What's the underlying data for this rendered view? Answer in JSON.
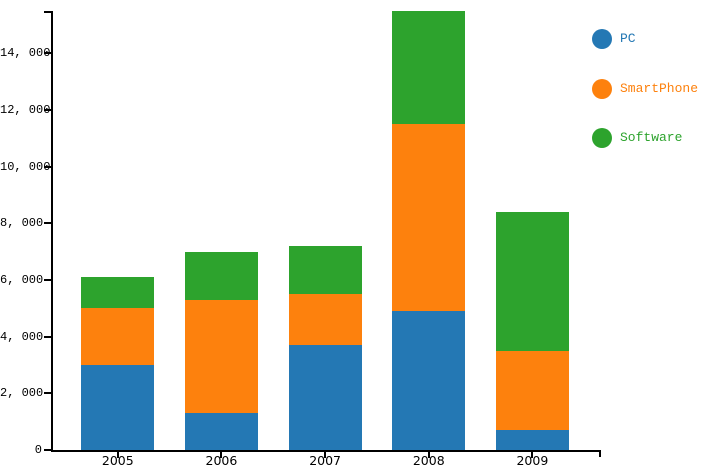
{
  "chart_data": {
    "type": "bar",
    "stacked": true,
    "title": "",
    "categories": [
      "2005",
      "2006",
      "2007",
      "2008",
      "2009"
    ],
    "series": [
      {
        "name": "PC",
        "color": "#2478b4",
        "values": [
          3000,
          1300,
          3700,
          4900,
          700
        ]
      },
      {
        "name": "SmartPhone",
        "color": "#fd810d",
        "values": [
          2000,
          4000,
          1800,
          6600,
          2800
        ]
      },
      {
        "name": "Software",
        "color": "#2da32d",
        "values": [
          1100,
          1700,
          1700,
          4000,
          4900
        ]
      }
    ],
    "y_axis": {
      "tick_values": [
        0,
        2000,
        4000,
        6000,
        8000,
        10000,
        12000,
        14000
      ],
      "tick_labels": [
        "0",
        "2, 000",
        "4, 000",
        "6, 000",
        "8, 000",
        "10, 000",
        "12, 000",
        "14, 000"
      ],
      "max": 15500
    },
    "x_axis": {
      "tick_labels": [
        "2005",
        "2006",
        "2007",
        "2008",
        "2009"
      ]
    },
    "legend": {
      "position": "right",
      "items": [
        {
          "label": "PC",
          "color": "#2478b4"
        },
        {
          "label": "SmartPhone",
          "color": "#fd810d"
        },
        {
          "label": "Software",
          "color": "#2da32d"
        }
      ]
    },
    "axis_color": "#000000",
    "background": "#ffffff"
  }
}
